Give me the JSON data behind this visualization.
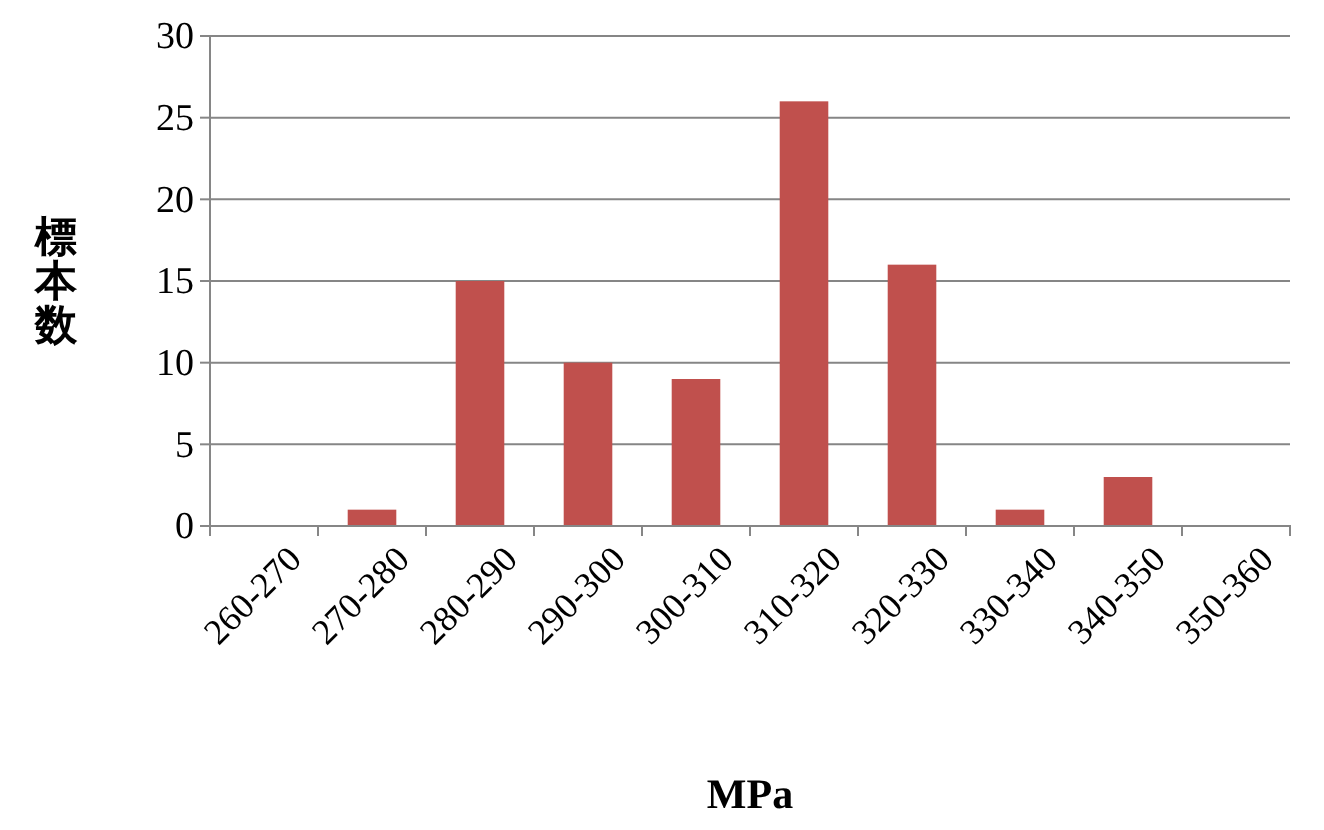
{
  "chart_data": {
    "type": "bar",
    "xlabel": "MPa",
    "ylabel": "標本数",
    "categories": [
      "260-270",
      "270-280",
      "280-290",
      "290-300",
      "300-310",
      "310-320",
      "320-330",
      "330-340",
      "340-350",
      "350-360"
    ],
    "values": [
      0,
      1,
      15,
      10,
      9,
      26,
      16,
      1,
      3,
      0
    ],
    "color": "#c0504d",
    "ylim": [
      0,
      30
    ],
    "yticks": [
      0,
      5,
      10,
      15,
      20,
      25,
      30
    ],
    "grid": "y"
  }
}
